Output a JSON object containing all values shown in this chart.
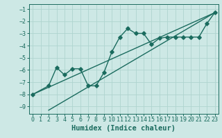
{
  "xlabel": "Humidex (Indice chaleur)",
  "bg_color": "#cde8e5",
  "line_color": "#1a6b5e",
  "xlim": [
    -0.5,
    23.5
  ],
  "ylim": [
    -9.6,
    -0.6
  ],
  "xticks": [
    0,
    1,
    2,
    3,
    4,
    5,
    6,
    7,
    8,
    9,
    10,
    11,
    12,
    13,
    14,
    15,
    16,
    17,
    18,
    19,
    20,
    21,
    22,
    23
  ],
  "yticks": [
    -9,
    -8,
    -7,
    -6,
    -5,
    -4,
    -3,
    -2,
    -1
  ],
  "grid_color": "#afd4cf",
  "line1_x": [
    0,
    2,
    3,
    4,
    5,
    6,
    7,
    8,
    9,
    10,
    11,
    12,
    13,
    14,
    15,
    16,
    17,
    18,
    19,
    20,
    21,
    22,
    23
  ],
  "line1_y": [
    -8.0,
    -7.3,
    -5.8,
    -6.4,
    -5.9,
    -5.9,
    -7.3,
    -7.3,
    -6.2,
    -4.5,
    -3.3,
    -2.6,
    -3.0,
    -3.0,
    -3.9,
    -3.4,
    -3.3,
    -3.3,
    -3.3,
    -3.3,
    -3.3,
    -2.2,
    -1.3
  ],
  "line2_x": [
    0,
    23
  ],
  "line2_y": [
    -8.0,
    -1.3
  ],
  "line3_x": [
    2,
    23
  ],
  "line3_y": [
    -9.3,
    -1.3
  ],
  "marker_size": 2.8,
  "lw": 1.0,
  "tick_fontsize": 6.0,
  "xlabel_fontsize": 7.5
}
